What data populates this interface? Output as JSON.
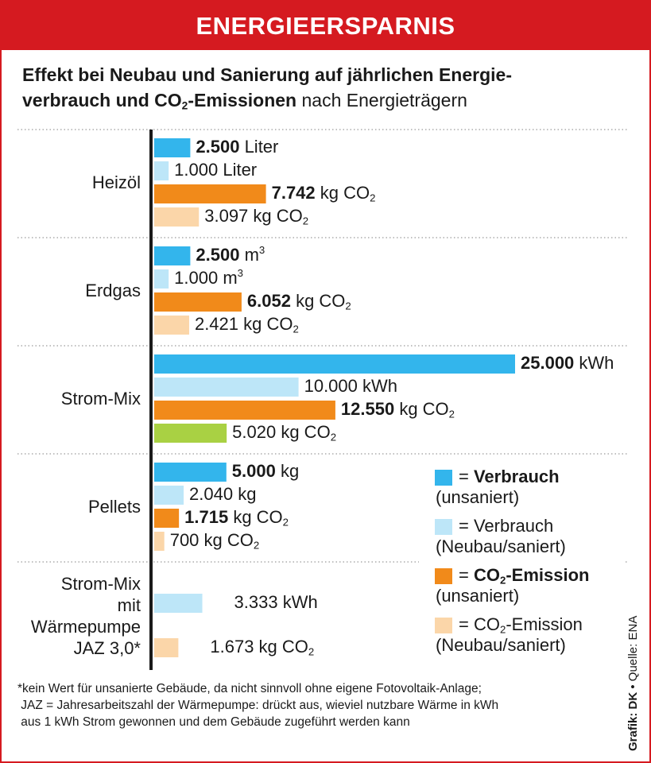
{
  "title": "ENERGIEERSPARNIS",
  "subtitle": {
    "bold_line1": "Effekt bei Neubau und Sanierung auf jährlichen Energie-",
    "bold_line2_a": "verbrauch und CO",
    "bold_line2_sub": "2",
    "bold_line2_b": "-Emissionen",
    "normal_tail": " nach Energieträgern"
  },
  "colors": {
    "verbrauch_unsaniert": "#33b5ec",
    "verbrauch_saniert": "#bde6f8",
    "co2_unsaniert": "#f18a1a",
    "co2_saniert": "#fbd6a9",
    "co2_strom_saniert": "#a9d143",
    "accent_red": "#d51a20"
  },
  "chart_data": {
    "type": "bar",
    "orientation": "horizontal",
    "title": "Effekt bei Neubau und Sanierung auf jährlichen Energieverbrauch und CO2-Emissionen nach Energieträgern",
    "categories": [
      {
        "label": "Heizöl",
        "bars": [
          {
            "value": 2500,
            "bold": "2.500",
            "unit": "Liter",
            "kind": "verbrauch_unsaniert"
          },
          {
            "value": 1000,
            "bold": "",
            "text": "1.000",
            "unit": "Liter",
            "kind": "verbrauch_saniert"
          },
          {
            "value": 7742,
            "bold": "7.742",
            "unit": "kg CO",
            "unit_sub": "2",
            "kind": "co2_unsaniert"
          },
          {
            "value": 3097,
            "bold": "",
            "text": "3.097",
            "unit": "kg CO",
            "unit_sub": "2",
            "kind": "co2_saniert"
          }
        ]
      },
      {
        "label": "Erdgas",
        "bars": [
          {
            "value": 2500,
            "bold": "2.500",
            "unit": "m",
            "unit_sup": "3",
            "kind": "verbrauch_unsaniert"
          },
          {
            "value": 1000,
            "bold": "",
            "text": "1.000",
            "unit": "m",
            "unit_sup": "3",
            "kind": "verbrauch_saniert"
          },
          {
            "value": 6052,
            "bold": "6.052",
            "unit": "kg CO",
            "unit_sub": "2",
            "kind": "co2_unsaniert"
          },
          {
            "value": 2421,
            "bold": "",
            "text": "2.421",
            "unit": "kg CO",
            "unit_sub": "2",
            "kind": "co2_saniert"
          }
        ]
      },
      {
        "label": "Strom-Mix",
        "bars": [
          {
            "value": 25000,
            "bold": "25.000",
            "unit": "kWh",
            "kind": "verbrauch_unsaniert"
          },
          {
            "value": 10000,
            "bold": "",
            "text": "10.000",
            "unit": "kWh",
            "kind": "verbrauch_saniert"
          },
          {
            "value": 12550,
            "bold": "12.550",
            "unit": "kg CO",
            "unit_sub": "2",
            "kind": "co2_unsaniert"
          },
          {
            "value": 5020,
            "bold": "",
            "text": "5.020",
            "unit": "kg CO",
            "unit_sub": "2",
            "kind": "co2_strom_saniert"
          }
        ]
      },
      {
        "label": "Pellets",
        "bars": [
          {
            "value": 5000,
            "bold": "5.000",
            "unit": "kg",
            "kind": "verbrauch_unsaniert"
          },
          {
            "value": 2040,
            "bold": "",
            "text": "2.040",
            "unit": "kg",
            "kind": "verbrauch_saniert"
          },
          {
            "value": 1715,
            "bold": "1.715",
            "unit": "kg CO",
            "unit_sub": "2",
            "kind": "co2_unsaniert"
          },
          {
            "value": 700,
            "bold": "",
            "text": "700",
            "unit": "kg CO",
            "unit_sub": "2",
            "kind": "co2_saniert"
          }
        ]
      },
      {
        "label_lines": [
          "Strom-Mix",
          "mit",
          "Wärmepumpe",
          "JAZ 3,0*"
        ],
        "bars": [
          {
            "value": 3333,
            "bold": "",
            "text": "3.333",
            "unit": "kWh",
            "kind": "verbrauch_saniert"
          },
          {
            "value": 1673,
            "bold": "",
            "text": "1.673",
            "unit": "kg CO",
            "unit_sub": "2",
            "kind": "co2_saniert"
          }
        ]
      }
    ],
    "legend": [
      {
        "kind": "verbrauch_unsaniert",
        "eq": "= ",
        "bold": "Verbrauch",
        "line2": "(unsaniert)"
      },
      {
        "kind": "verbrauch_saniert",
        "eq": "= ",
        "text": "Verbrauch",
        "line2": "(Neubau/saniert)"
      },
      {
        "kind": "co2_unsaniert",
        "eq": "= ",
        "bold": "CO",
        "bold_sub": "2",
        "bold_tail": "-Emission",
        "line2": "(unsaniert)"
      },
      {
        "kind": "co2_saniert",
        "eq": "= ",
        "text": "CO",
        "text_sub": "2",
        "text_tail": "-Emission",
        "line2": "(Neubau/saniert)"
      }
    ],
    "legend_position": "bottom-right",
    "grid": false
  },
  "footnote": {
    "line1": "*kein Wert für unsanierte Gebäude, da nicht sinnvoll ohne eigene Fotovoltaik-Anlage;",
    "line2": " JAZ = Jahresarbeitszahl der Wärmepumpe: drückt aus, wieviel nutzbare Wärme in kWh",
    "line3": " aus 1 kWh Strom gewonnen und dem Gebäude zugeführt werden kann"
  },
  "credit": {
    "bold": "Grafik: DK",
    "sep": " • ",
    "text": "Quelle: ENA"
  }
}
